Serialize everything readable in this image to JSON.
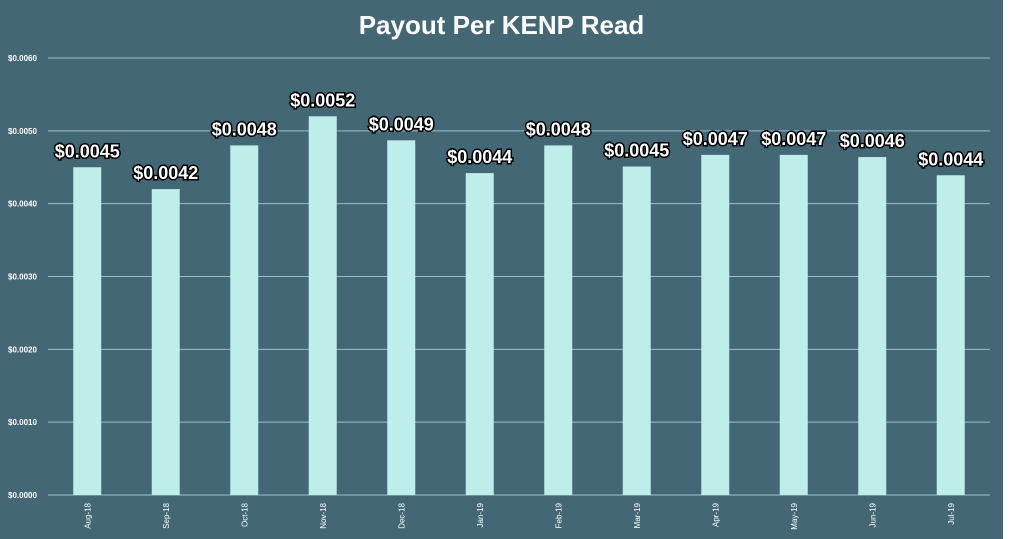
{
  "chart_data": {
    "type": "bar",
    "title": "Payout Per KENP Read",
    "categories": [
      "Aug-18",
      "Sep-18",
      "Oct-18",
      "Nov-18",
      "Dec-18",
      "Jan-19",
      "Feb-19",
      "Mar-19",
      "Apr-19",
      "May-19",
      "Jun-19",
      "Jul-19"
    ],
    "values": [
      0.0045,
      0.0042,
      0.0048,
      0.0052,
      0.00487,
      0.00442,
      0.0048,
      0.00451,
      0.00467,
      0.00467,
      0.00464,
      0.00439
    ],
    "data_labels": [
      "$0.0045",
      "$0.0042",
      "$0.0048",
      "$0.0052",
      "$0.0049",
      "$0.0044",
      "$0.0048",
      "$0.0045",
      "$0.0047",
      "$0.0047",
      "$0.0046",
      "$0.0044"
    ],
    "yticks": [
      0,
      0.001,
      0.002,
      0.003,
      0.004,
      0.005,
      0.006
    ],
    "ytick_labels": [
      "$0.0000",
      "$0.0010",
      "$0.0020",
      "$0.0030",
      "$0.0040",
      "$0.0050",
      "$0.0060"
    ],
    "ylim": [
      0,
      0.006
    ],
    "xlabel": "",
    "ylabel": "",
    "grid": true,
    "legend": "none",
    "colors": {
      "background": "#436775",
      "bar": "#bdeee9",
      "grid": "#9fbcc6"
    }
  }
}
